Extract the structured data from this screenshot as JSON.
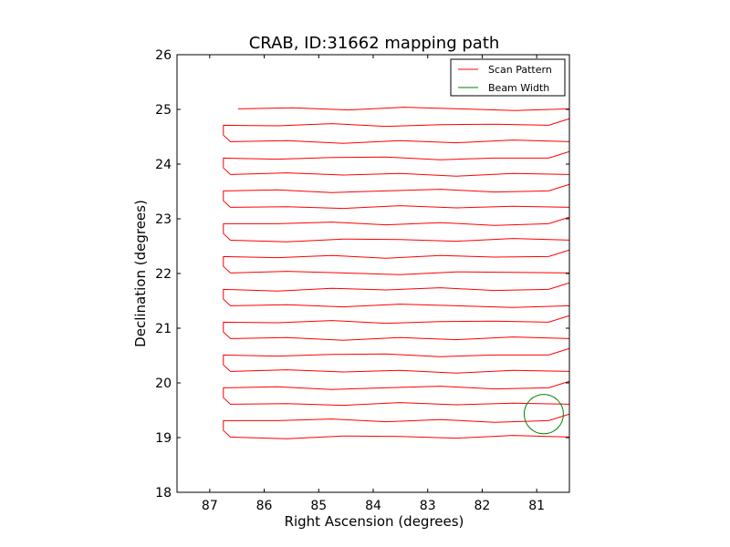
{
  "chart_data": {
    "type": "line",
    "title": "CRAB, ID:31662 mapping path",
    "xlabel": "Right Ascension (degrees)",
    "ylabel": "Declination (degrees)",
    "xlim": [
      87.6,
      80.4
    ],
    "ylim": [
      18,
      26
    ],
    "x_inverted": true,
    "xticks": [
      87,
      86,
      85,
      84,
      83,
      82,
      81
    ],
    "xtick_labels": [
      "87",
      "86",
      "85",
      "84",
      "83",
      "82",
      "81"
    ],
    "yticks": [
      18,
      19,
      20,
      21,
      22,
      23,
      24,
      25,
      26
    ],
    "ytick_labels": [
      "18",
      "19",
      "20",
      "21",
      "22",
      "23",
      "24",
      "25",
      "26"
    ],
    "grid": false,
    "legend": {
      "position": "top-right",
      "entries": [
        {
          "label": "Scan Pattern",
          "color": "#ff0000"
        },
        {
          "label": "Beam Width",
          "color": "#008000"
        }
      ]
    },
    "series": [
      {
        "name": "Scan Pattern",
        "color": "#ff0000",
        "kind": "raster",
        "scan_start": [
          86.48,
          25.01
        ],
        "ra_east": 86.75,
        "ra_west": 80.4,
        "ra_turn_east_lower": 86.62,
        "ra_turn_west_lower": 80.78,
        "dec_top": 25.01,
        "dec_bottom": 19.01,
        "dec_step": 0.3,
        "turn_drop": 0.18,
        "jitter": [
          0.02,
          -0.02,
          0.03,
          0.0,
          -0.03,
          0.02,
          0.01,
          -0.02,
          0.03,
          -0.01,
          0.02,
          -0.03
        ]
      },
      {
        "name": "Beam Width",
        "color": "#008000",
        "kind": "circle",
        "center": [
          80.87,
          19.43
        ],
        "radius_deg": 0.36
      }
    ]
  }
}
